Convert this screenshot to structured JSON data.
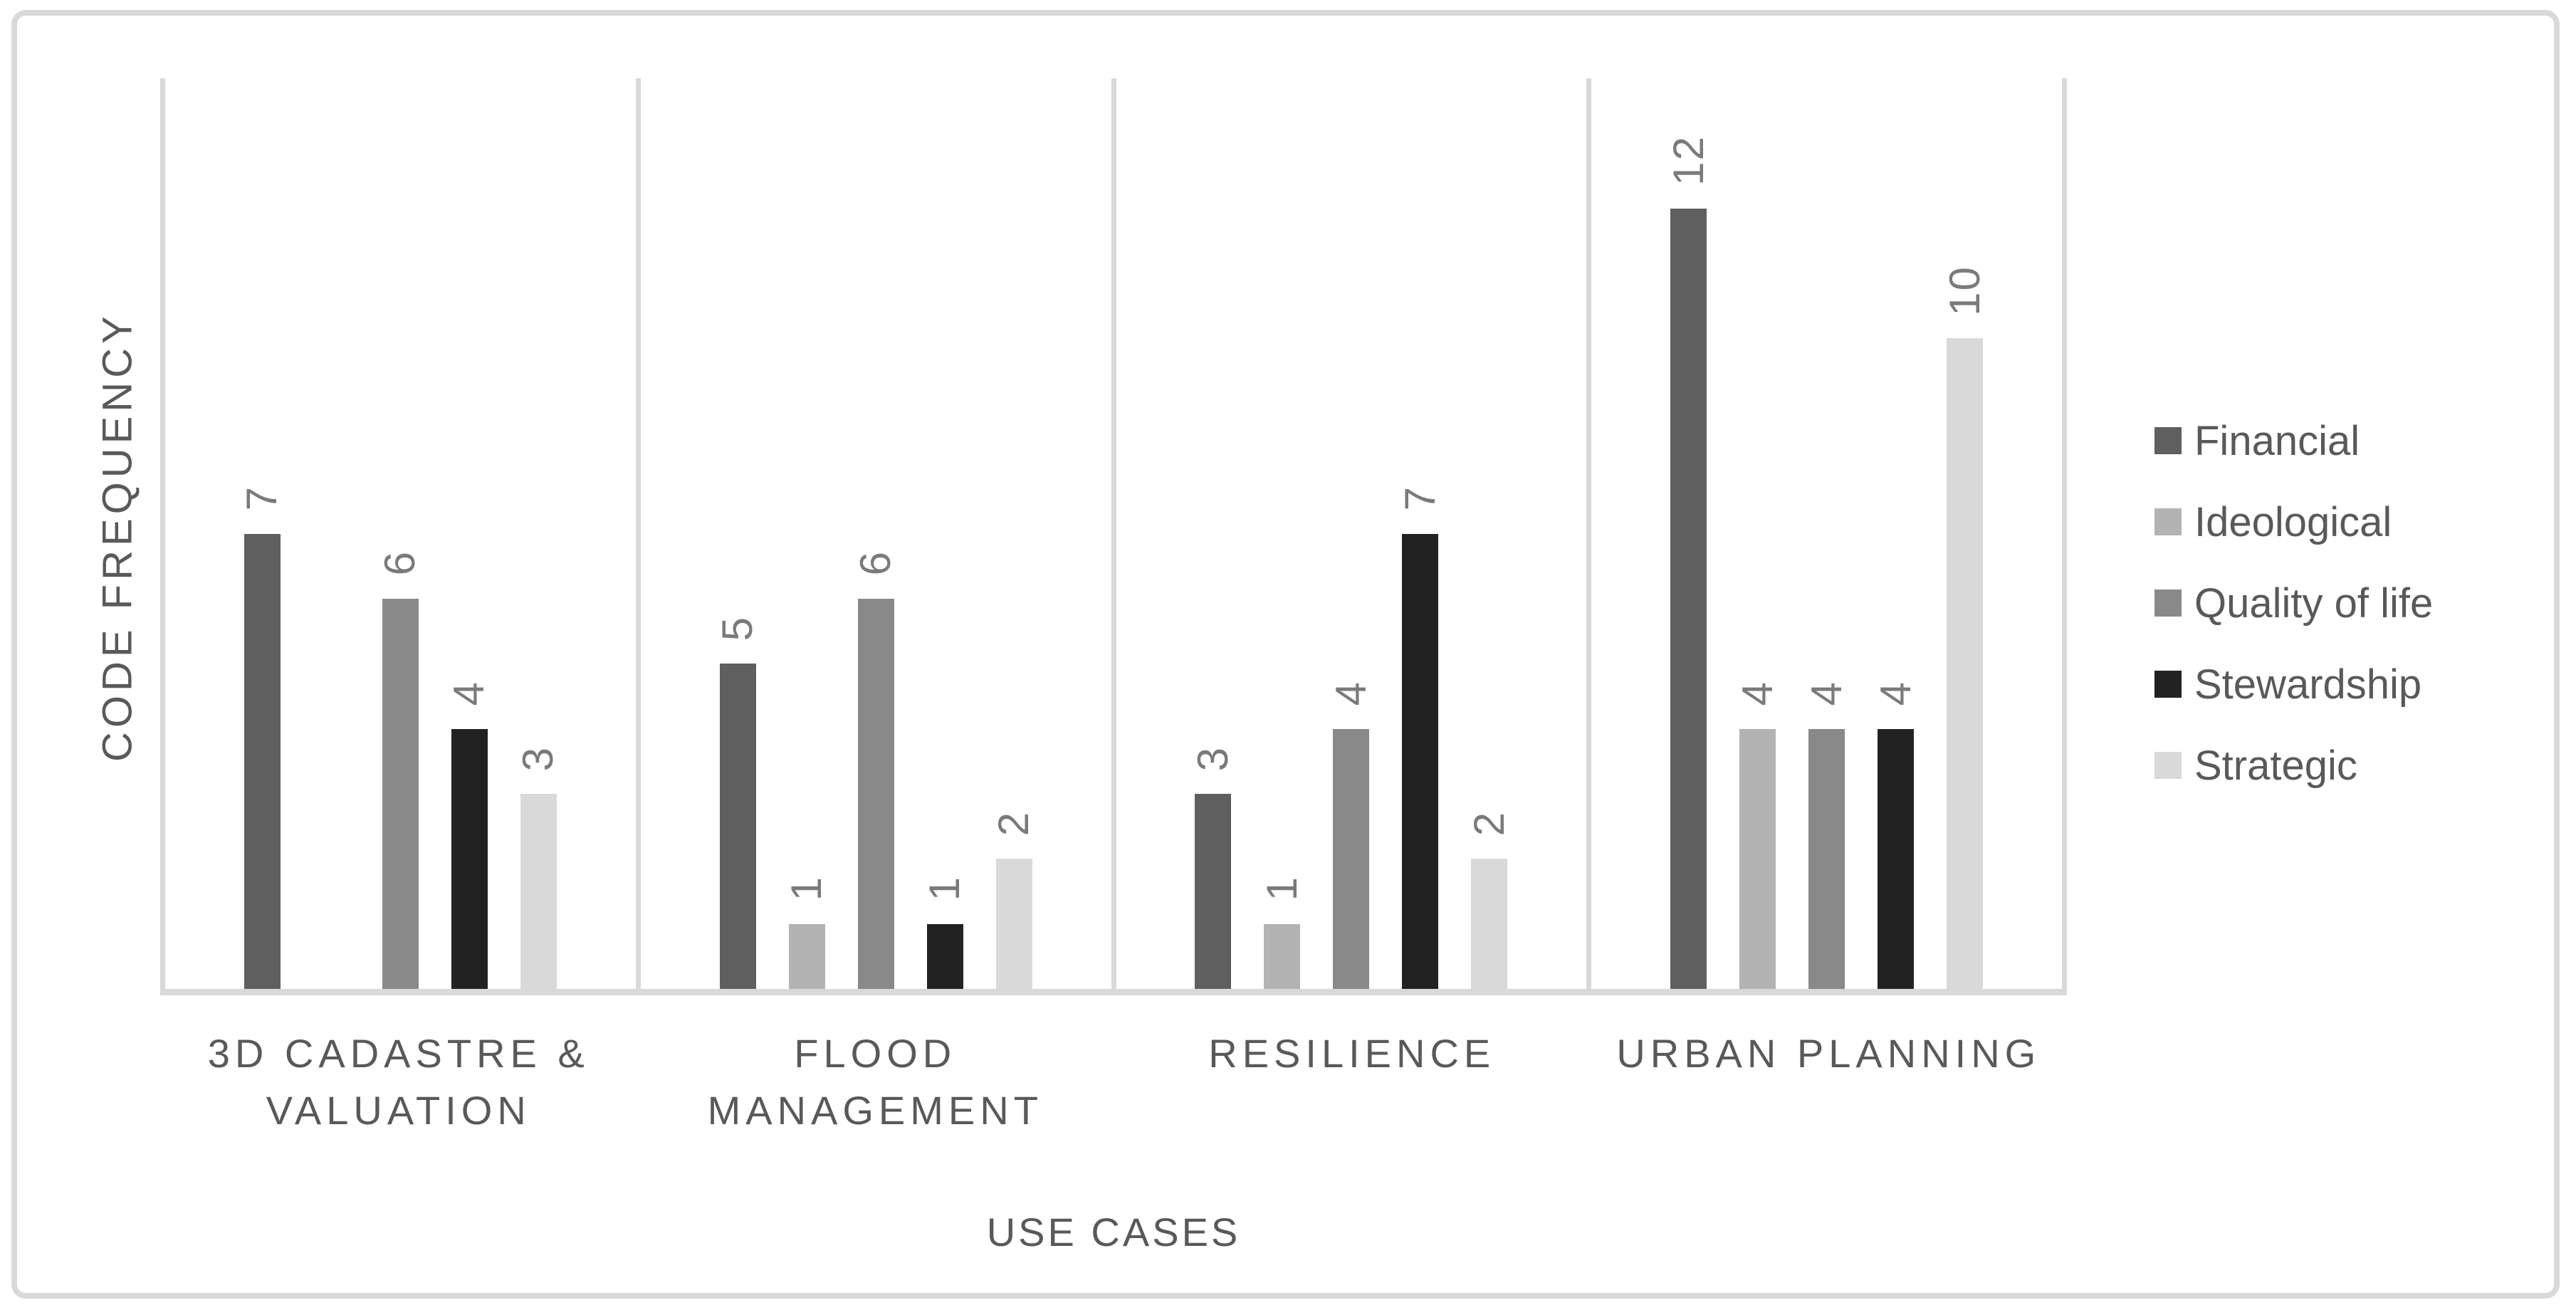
{
  "chart": {
    "y_axis_title": "CODE FREQUENCY",
    "x_axis_title": "USE CASES"
  },
  "chart_data": {
    "type": "bar",
    "title": "",
    "xlabel": "USE CASES",
    "ylabel": "CODE FREQUENCY",
    "categories": [
      "3D CADASTRE & VALUATION",
      "FLOOD MANAGEMENT",
      "RESILIENCE",
      "URBAN PLANNING"
    ],
    "series": [
      {
        "name": "Financial",
        "color": "#5f5f5f",
        "values": [
          7,
          5,
          3,
          12
        ]
      },
      {
        "name": "Ideological",
        "color": "#b3b3b3",
        "values": [
          0,
          1,
          1,
          4
        ]
      },
      {
        "name": "Quality of life",
        "color": "#898989",
        "values": [
          6,
          6,
          4,
          4
        ]
      },
      {
        "name": "Stewardship",
        "color": "#222222",
        "values": [
          4,
          1,
          7,
          4
        ]
      },
      {
        "name": "Strategic",
        "color": "#d9d9d9",
        "values": [
          3,
          2,
          2,
          10
        ]
      }
    ],
    "ylim": [
      0,
      14
    ],
    "grid": false,
    "y_tick_labels_visible": false,
    "data_labels": "rotated 90deg, above bars, hidden for zero values",
    "legend_position": "right",
    "text_color": "#595959",
    "data_label_color": "#7a7a7a",
    "axis_line_color": "#d9d9d9",
    "frame_border_color": "#d9d9d9"
  }
}
